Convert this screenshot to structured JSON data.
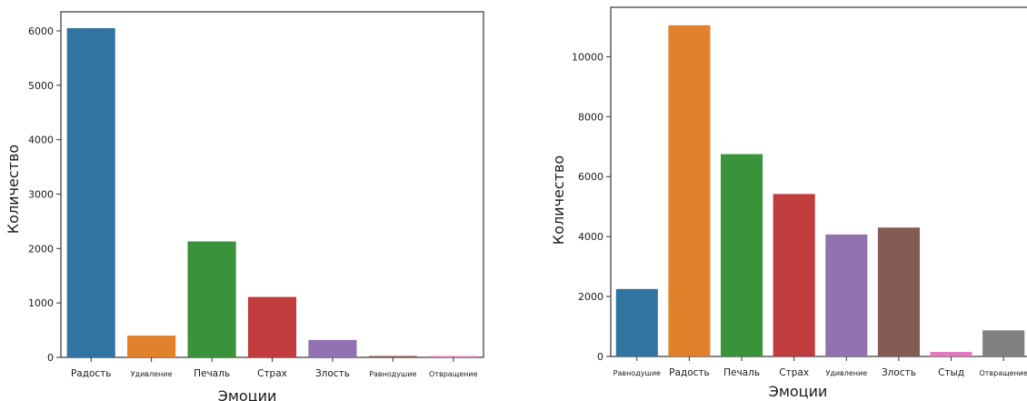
{
  "chart_data": [
    {
      "type": "bar",
      "categories": [
        "Радость",
        "Удивление",
        "Печаль",
        "Страх",
        "Злость",
        "Равнодушие",
        "Отвращение"
      ],
      "values": [
        6050,
        400,
        2130,
        1110,
        320,
        20,
        20
      ],
      "xlabel": "Эмоции",
      "ylabel": "Количество",
      "ylim": [
        0,
        6350
      ],
      "yticks": [
        0,
        1000,
        2000,
        3000,
        4000,
        5000,
        6000
      ],
      "colors": [
        "#3274a1",
        "#e1812c",
        "#3a923a",
        "#c03d3e",
        "#9372b2",
        "#845b53",
        "#d684bd"
      ],
      "grid": false,
      "legend": "none"
    },
    {
      "type": "bar",
      "categories": [
        "Равнодушие",
        "Радость",
        "Печаль",
        "Страх",
        "Удивление",
        "Злость",
        "Стыд",
        "Отвращение"
      ],
      "values": [
        2250,
        11050,
        6750,
        5420,
        4070,
        4300,
        150,
        870
      ],
      "xlabel": "Эмоции",
      "ylabel": "Количество",
      "ylim": [
        0,
        11650
      ],
      "yticks": [
        0,
        2000,
        4000,
        6000,
        8000,
        10000
      ],
      "colors": [
        "#3274a1",
        "#e1812c",
        "#3a923a",
        "#c03d3e",
        "#9372b2",
        "#845b53",
        "#e377c2",
        "#808080"
      ],
      "grid": false,
      "legend": "none"
    }
  ]
}
